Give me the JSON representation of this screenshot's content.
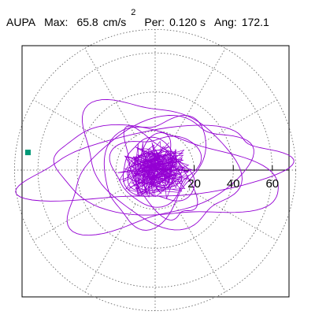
{
  "header": {
    "station": "AUPA",
    "max_label": "Max:",
    "max_value": "65.8",
    "max_unit": "cm/s",
    "max_unit_exp": "2",
    "per_label": "Per:",
    "per_value": "0.120 s",
    "ang_label": "Ang:",
    "ang_value": "172.1"
  },
  "chart_data": {
    "type": "polar-orbit",
    "title": "",
    "xlabel": "",
    "ylabel": "",
    "radial_ticks": [
      20,
      40,
      60
    ],
    "rlim": [
      0,
      72
    ],
    "spoke_step_deg": 30,
    "grid": true,
    "trace_color": "#9400d3",
    "marker_color": "#009977",
    "peak": {
      "angle_deg": 172.1,
      "radius": 65.8
    },
    "orbit_loops": [
      {
        "a": 66,
        "b": 17,
        "rot": 6,
        "cx": 1,
        "cy": 2
      },
      {
        "a": 58,
        "b": 21,
        "rot": -8,
        "cx": 3,
        "cy": -2
      },
      {
        "a": 48,
        "b": 24,
        "rot": 20,
        "cx": 0,
        "cy": -2
      },
      {
        "a": 42,
        "b": 28,
        "rot": -28,
        "cx": 2,
        "cy": 4
      },
      {
        "a": 30,
        "b": 22,
        "rot": 52,
        "cx": -1,
        "cy": 1
      },
      {
        "a": 26,
        "b": 12,
        "rot": -55,
        "cx": 2,
        "cy": -3
      },
      {
        "a": 22,
        "b": 17,
        "rot": 12,
        "cx": 0,
        "cy": 1
      },
      {
        "a": 19,
        "b": 14,
        "rot": -30,
        "cx": 1,
        "cy": -1
      },
      {
        "a": 16,
        "b": 10,
        "rot": 70,
        "cx": -1,
        "cy": 2
      },
      {
        "a": 13,
        "b": 9,
        "rot": -12,
        "cx": 0,
        "cy": 0
      },
      {
        "a": 11,
        "b": 6,
        "rot": 38,
        "cx": 1,
        "cy": 1
      },
      {
        "a": 8,
        "b": 5,
        "rot": -60,
        "cx": 0,
        "cy": -1
      },
      {
        "a": 5,
        "b": 3,
        "rot": 20,
        "cx": 1,
        "cy": 0
      }
    ]
  }
}
